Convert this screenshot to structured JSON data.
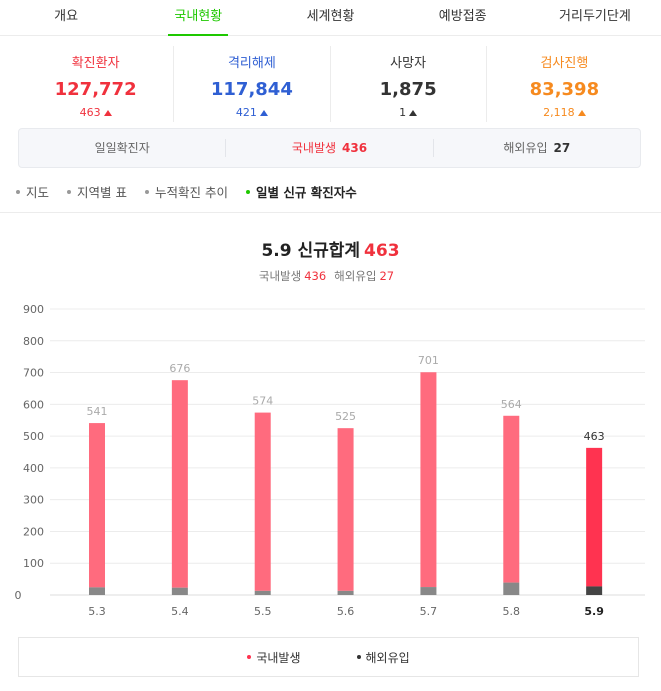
{
  "tabs": [
    {
      "label": "개요"
    },
    {
      "label": "국내현황"
    },
    {
      "label": "세계현황"
    },
    {
      "label": "예방접종"
    },
    {
      "label": "거리두기단계"
    }
  ],
  "stats": [
    {
      "label": "확진환자",
      "value": "127,772",
      "change": "463",
      "color": "#f0313d"
    },
    {
      "label": "격리해제",
      "value": "117,844",
      "change": "421",
      "color": "#2f5fd3"
    },
    {
      "label": "사망자",
      "value": "1,875",
      "change": "1",
      "color": "#333333"
    },
    {
      "label": "검사진행",
      "value": "83,398",
      "change": "2,118",
      "color": "#f68a1f"
    }
  ],
  "daily": {
    "label": "일일확진자",
    "domestic_label": "국내발생",
    "domestic_value": "436",
    "overseas_label": "해외유입",
    "overseas_value": "27"
  },
  "subnav": [
    "지도",
    "지역별 표",
    "누적확진 추이",
    "일별 신규 확진자수"
  ],
  "chart_header": {
    "title": "5.9 신규합계",
    "total": "463",
    "domestic_label": "국내발생",
    "domestic_value": "436",
    "overseas_label": "해외유입",
    "overseas_value": "27"
  },
  "chart_data": {
    "type": "bar",
    "stacked": true,
    "categories": [
      "5.3",
      "5.4",
      "5.5",
      "5.6",
      "5.7",
      "5.8",
      "5.9"
    ],
    "totals": [
      541,
      676,
      574,
      525,
      701,
      564,
      463
    ],
    "series": [
      {
        "name": "국내발생",
        "values": [
          517,
          653,
          561,
          512,
          676,
          525,
          436
        ],
        "color": "#ff6b7e",
        "highlight_color": "#ff3350"
      },
      {
        "name": "해외유입",
        "values": [
          24,
          23,
          13,
          13,
          25,
          39,
          27
        ],
        "color": "#888888",
        "highlight_color": "#444444"
      }
    ],
    "y_ticks": [
      0,
      100,
      200,
      300,
      400,
      500,
      600,
      700,
      800,
      900
    ],
    "ylim": [
      0,
      900
    ],
    "highlight_index": 6,
    "grid": true,
    "legend_position": "bottom"
  },
  "legend": [
    {
      "label": "국내발생",
      "color": "#ff3350"
    },
    {
      "label": "해외유입",
      "color": "#333333"
    }
  ]
}
